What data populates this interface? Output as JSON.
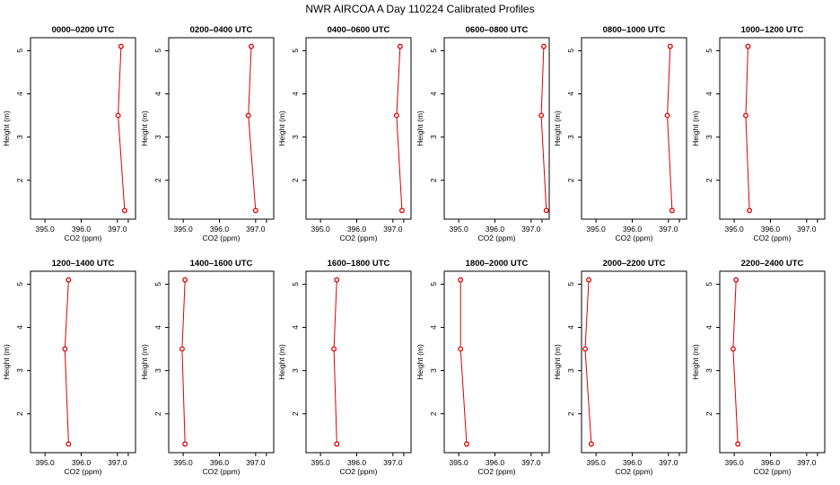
{
  "figure": {
    "title": "NWR AIRCOA A  Day 110224  Calibrated Profiles"
  },
  "chart_data": [
    {
      "type": "line",
      "title": "0000–0200 UTC",
      "xlabel": "CO2 (ppm)",
      "ylabel": "Height (m)",
      "xlim": [
        394.6,
        397.5
      ],
      "ylim": [
        1.1,
        5.3
      ],
      "xticks": [
        395.0,
        396.0,
        397.0
      ],
      "xtick_labels": [
        "395.0",
        "396.0",
        "397.0"
      ],
      "yticks": [
        2,
        3,
        4,
        5
      ],
      "ytick_labels": [
        "2",
        "3",
        "4",
        "5"
      ],
      "x": [
        397.1,
        397.02,
        397.2
      ],
      "y": [
        5.1,
        3.5,
        1.3
      ]
    },
    {
      "type": "line",
      "title": "0200–0400 UTC",
      "xlabel": "CO2 (ppm)",
      "ylabel": "Height (m)",
      "xlim": [
        394.6,
        397.5
      ],
      "ylim": [
        1.1,
        5.3
      ],
      "xticks": [
        395.0,
        396.0,
        397.0
      ],
      "xtick_labels": [
        "395.0",
        "396.0",
        "397.0"
      ],
      "yticks": [
        2,
        3,
        4,
        5
      ],
      "ytick_labels": [
        "2",
        "3",
        "4",
        "5"
      ],
      "x": [
        396.88,
        396.8,
        397.0
      ],
      "y": [
        5.1,
        3.5,
        1.3
      ]
    },
    {
      "type": "line",
      "title": "0400–0600 UTC",
      "xlabel": "CO2 (ppm)",
      "ylabel": "Height (m)",
      "xlim": [
        394.6,
        397.5
      ],
      "ylim": [
        1.1,
        5.3
      ],
      "xticks": [
        395.0,
        396.0,
        397.0
      ],
      "xtick_labels": [
        "395.0",
        "396.0",
        "397.0"
      ],
      "yticks": [
        2,
        3,
        4,
        5
      ],
      "ytick_labels": [
        "2",
        "3",
        "4",
        "5"
      ],
      "x": [
        397.2,
        397.1,
        397.25
      ],
      "y": [
        5.1,
        3.5,
        1.3
      ]
    },
    {
      "type": "line",
      "title": "0600–0800 UTC",
      "xlabel": "CO2 (ppm)",
      "ylabel": "Height (m)",
      "xlim": [
        394.6,
        397.5
      ],
      "ylim": [
        1.1,
        5.3
      ],
      "xticks": [
        395.0,
        396.0,
        397.0
      ],
      "xtick_labels": [
        "395.0",
        "396.0",
        "397.0"
      ],
      "yticks": [
        2,
        3,
        4,
        5
      ],
      "ytick_labels": [
        "2",
        "3",
        "4",
        "5"
      ],
      "x": [
        397.35,
        397.28,
        397.42
      ],
      "y": [
        5.1,
        3.5,
        1.3
      ]
    },
    {
      "type": "line",
      "title": "0800–1000 UTC",
      "xlabel": "CO2 (ppm)",
      "ylabel": "Height (m)",
      "xlim": [
        394.6,
        397.5
      ],
      "ylim": [
        1.1,
        5.3
      ],
      "xticks": [
        395.0,
        396.0,
        397.0
      ],
      "xtick_labels": [
        "395.0",
        "396.0",
        "397.0"
      ],
      "yticks": [
        2,
        3,
        4,
        5
      ],
      "ytick_labels": [
        "2",
        "3",
        "4",
        "5"
      ],
      "x": [
        397.05,
        396.97,
        397.1
      ],
      "y": [
        5.1,
        3.5,
        1.3
      ]
    },
    {
      "type": "line",
      "title": "1000–1200 UTC",
      "xlabel": "CO2 (ppm)",
      "ylabel": "Height (m)",
      "xlim": [
        394.6,
        397.5
      ],
      "ylim": [
        1.1,
        5.3
      ],
      "xticks": [
        395.0,
        396.0,
        397.0
      ],
      "xtick_labels": [
        "395.0",
        "396.0",
        "397.0"
      ],
      "yticks": [
        2,
        3,
        4,
        5
      ],
      "ytick_labels": [
        "2",
        "3",
        "4",
        "5"
      ],
      "x": [
        395.38,
        395.32,
        395.42
      ],
      "y": [
        5.1,
        3.5,
        1.3
      ]
    },
    {
      "type": "line",
      "title": "1200–1400 UTC",
      "xlabel": "CO2 (ppm)",
      "ylabel": "Height (m)",
      "xlim": [
        394.6,
        397.5
      ],
      "ylim": [
        1.1,
        5.3
      ],
      "xticks": [
        395.0,
        396.0,
        397.0
      ],
      "xtick_labels": [
        "395.0",
        "396.0",
        "397.0"
      ],
      "yticks": [
        2,
        3,
        4,
        5
      ],
      "ytick_labels": [
        "2",
        "3",
        "4",
        "5"
      ],
      "x": [
        395.65,
        395.55,
        395.65
      ],
      "y": [
        5.1,
        3.5,
        1.3
      ]
    },
    {
      "type": "line",
      "title": "1400–1600 UTC",
      "xlabel": "CO2 (ppm)",
      "ylabel": "Height (m)",
      "xlim": [
        394.6,
        397.5
      ],
      "ylim": [
        1.1,
        5.3
      ],
      "xticks": [
        395.0,
        396.0,
        397.0
      ],
      "xtick_labels": [
        "395.0",
        "396.0",
        "397.0"
      ],
      "yticks": [
        2,
        3,
        4,
        5
      ],
      "ytick_labels": [
        "2",
        "3",
        "4",
        "5"
      ],
      "x": [
        395.05,
        394.97,
        395.05
      ],
      "y": [
        5.1,
        3.5,
        1.3
      ]
    },
    {
      "type": "line",
      "title": "1600–1800 UTC",
      "xlabel": "CO2 (ppm)",
      "ylabel": "Height (m)",
      "xlim": [
        394.6,
        397.5
      ],
      "ylim": [
        1.1,
        5.3
      ],
      "xticks": [
        395.0,
        396.0,
        397.0
      ],
      "xtick_labels": [
        "395.0",
        "396.0",
        "397.0"
      ],
      "yticks": [
        2,
        3,
        4,
        5
      ],
      "ytick_labels": [
        "2",
        "3",
        "4",
        "5"
      ],
      "x": [
        395.45,
        395.37,
        395.45
      ],
      "y": [
        5.1,
        3.5,
        1.3
      ]
    },
    {
      "type": "line",
      "title": "1800–2000 UTC",
      "xlabel": "CO2 (ppm)",
      "ylabel": "Height (m)",
      "xlim": [
        394.6,
        397.5
      ],
      "ylim": [
        1.1,
        5.3
      ],
      "xticks": [
        395.0,
        396.0,
        397.0
      ],
      "xtick_labels": [
        "395.0",
        "396.0",
        "397.0"
      ],
      "yticks": [
        2,
        3,
        4,
        5
      ],
      "ytick_labels": [
        "2",
        "3",
        "4",
        "5"
      ],
      "x": [
        395.05,
        395.05,
        395.22
      ],
      "y": [
        5.1,
        3.5,
        1.3
      ]
    },
    {
      "type": "line",
      "title": "2000–2200 UTC",
      "xlabel": "CO2 (ppm)",
      "ylabel": "Height (m)",
      "xlim": [
        394.6,
        397.5
      ],
      "ylim": [
        1.1,
        5.3
      ],
      "xticks": [
        395.0,
        396.0,
        397.0
      ],
      "xtick_labels": [
        "395.0",
        "396.0",
        "397.0"
      ],
      "yticks": [
        2,
        3,
        4,
        5
      ],
      "ytick_labels": [
        "2",
        "3",
        "4",
        "5"
      ],
      "x": [
        394.8,
        394.7,
        394.87
      ],
      "y": [
        5.1,
        3.5,
        1.3
      ]
    },
    {
      "type": "line",
      "title": "2200–2400 UTC",
      "xlabel": "CO2 (ppm)",
      "ylabel": "Height (m)",
      "xlim": [
        394.6,
        397.5
      ],
      "ylim": [
        1.1,
        5.3
      ],
      "xticks": [
        395.0,
        396.0,
        397.0
      ],
      "xtick_labels": [
        "395.0",
        "396.0",
        "397.0"
      ],
      "yticks": [
        2,
        3,
        4,
        5
      ],
      "ytick_labels": [
        "2",
        "3",
        "4",
        "5"
      ],
      "x": [
        395.05,
        394.97,
        395.1
      ],
      "y": [
        5.1,
        3.5,
        1.3
      ]
    }
  ]
}
